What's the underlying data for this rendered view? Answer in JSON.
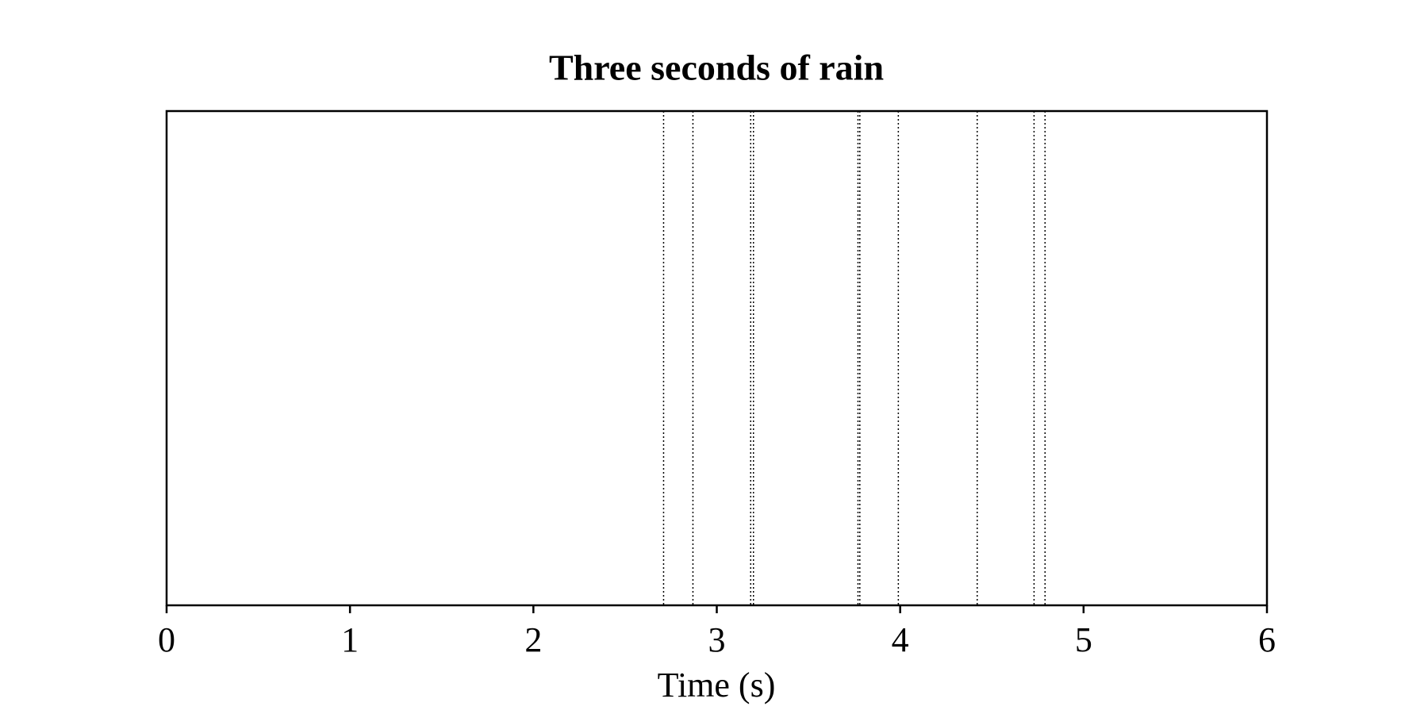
{
  "chart_data": {
    "type": "event",
    "title": "Three seconds of rain",
    "x_label": "Time (s)",
    "values": [
      2.71,
      2.87,
      3.185,
      3.2,
      3.77,
      3.78,
      3.99,
      4.42,
      4.73,
      4.79
    ],
    "color": "#000000",
    "line_style": "dotted",
    "xlim": [
      0,
      6
    ],
    "xticks": [
      0,
      1,
      2,
      3,
      4,
      5,
      6
    ]
  }
}
